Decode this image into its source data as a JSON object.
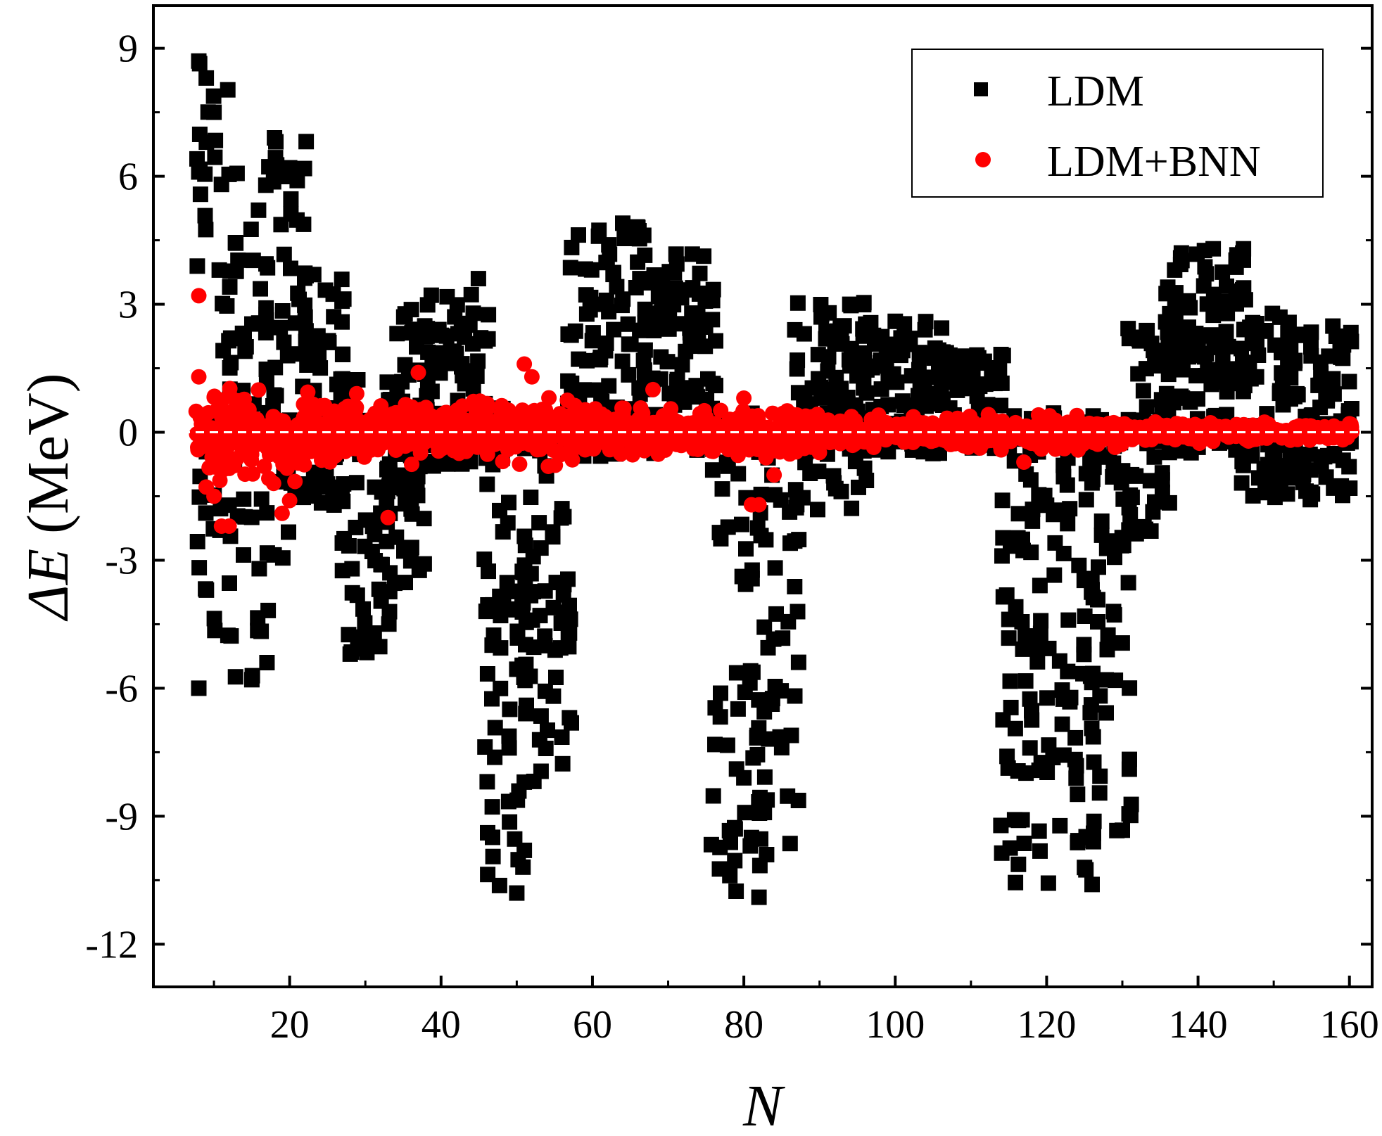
{
  "chart_data": {
    "type": "scatter",
    "title": "",
    "xlabel": "N",
    "ylabel_prefix": "ΔE",
    "ylabel_suffix": " (MeV)",
    "xlim": [
      2,
      163
    ],
    "ylim": [
      -13,
      10
    ],
    "x_ticks": [
      20,
      40,
      60,
      80,
      100,
      120,
      140,
      160
    ],
    "x_tick_labels": [
      "20",
      "40",
      "60",
      "80",
      "100",
      "120",
      "140",
      "160"
    ],
    "x_minor_ticks": [
      10,
      30,
      50,
      70,
      90,
      110,
      130,
      150
    ],
    "y_ticks": [
      9,
      6,
      3,
      0,
      -3,
      -6,
      -9,
      -12
    ],
    "y_tick_labels": [
      "9",
      "6",
      "3",
      "0",
      "-3",
      "-6",
      "-9",
      "-12"
    ],
    "y_minor_ticks": [
      7.5,
      4.5,
      1.5,
      -1.5,
      -4.5,
      -7.5,
      -10.5
    ],
    "reference_line": {
      "y": 0,
      "style": "dashed",
      "color": "#ffffff"
    },
    "grid": false,
    "legend": {
      "position": "top-right"
    },
    "colors": {
      "ldm": "#000000",
      "ldm_bnn": "#ff0000"
    },
    "series": [
      {
        "name": "LDM",
        "marker": "square",
        "envelope": [
          {
            "n_min": 8,
            "n_max": 12,
            "lo": -6.0,
            "hi": 8.7
          },
          {
            "n_min": 12,
            "n_max": 17,
            "lo": -5.8,
            "hi": 6.1
          },
          {
            "n_min": 17,
            "n_max": 22,
            "lo": -3.2,
            "hi": 6.9
          },
          {
            "n_min": 22,
            "n_max": 27,
            "lo": -1.8,
            "hi": 3.8
          },
          {
            "n_min": 27,
            "n_max": 33,
            "lo": -5.2,
            "hi": 1.5
          },
          {
            "n_min": 33,
            "n_max": 38,
            "lo": -3.6,
            "hi": 3.0
          },
          {
            "n_min": 38,
            "n_max": 46,
            "lo": -0.8,
            "hi": 3.7
          },
          {
            "n_min": 46,
            "n_max": 51,
            "lo": -10.8,
            "hi": 0.6
          },
          {
            "n_min": 51,
            "n_max": 57,
            "lo": -8.2,
            "hi": 0.4
          },
          {
            "n_min": 57,
            "n_max": 67,
            "lo": -0.6,
            "hi": 4.9
          },
          {
            "n_min": 67,
            "n_max": 76,
            "lo": -0.5,
            "hi": 4.2
          },
          {
            "n_min": 76,
            "n_max": 82,
            "lo": -10.9,
            "hi": 0.5
          },
          {
            "n_min": 82,
            "n_max": 87,
            "lo": -10.0,
            "hi": 0.3
          },
          {
            "n_min": 87,
            "n_max": 96,
            "lo": -1.9,
            "hi": 3.1
          },
          {
            "n_min": 96,
            "n_max": 106,
            "lo": -0.5,
            "hi": 2.6
          },
          {
            "n_min": 106,
            "n_max": 114,
            "lo": -0.4,
            "hi": 1.9
          },
          {
            "n_min": 114,
            "n_max": 126,
            "lo": -10.6,
            "hi": 0.5
          },
          {
            "n_min": 126,
            "n_max": 131,
            "lo": -9.5,
            "hi": 0.6
          },
          {
            "n_min": 131,
            "n_max": 136,
            "lo": -2.4,
            "hi": 2.6
          },
          {
            "n_min": 136,
            "n_max": 146,
            "lo": -0.5,
            "hi": 4.3
          },
          {
            "n_min": 146,
            "n_max": 152,
            "lo": -1.6,
            "hi": 2.8
          },
          {
            "n_min": 152,
            "n_max": 160,
            "lo": -1.6,
            "hi": 2.5
          }
        ],
        "outliers": [
          [
            8,
            8.7
          ],
          [
            8,
            6.1
          ],
          [
            9,
            6.8
          ],
          [
            10,
            7.5
          ],
          [
            18,
            6.9
          ],
          [
            20,
            6.2
          ],
          [
            21,
            5.9
          ],
          [
            8,
            -6.0
          ],
          [
            9,
            -3.7
          ],
          [
            15,
            -5.8
          ],
          [
            17,
            -5.4
          ],
          [
            28,
            -5.2
          ],
          [
            29,
            -4.8
          ],
          [
            50,
            -10.8
          ],
          [
            51,
            -9.8
          ],
          [
            51,
            -8.2
          ],
          [
            49,
            -7.4
          ],
          [
            82,
            -10.9
          ],
          [
            81,
            -9.5
          ],
          [
            83,
            -9.9
          ],
          [
            80,
            -8.1
          ],
          [
            126,
            -10.6
          ],
          [
            125,
            -10.2
          ],
          [
            126,
            -9.5
          ],
          [
            64,
            4.9
          ],
          [
            66,
            4.8
          ],
          [
            142,
            4.3
          ],
          [
            146,
            4.3
          ],
          [
            94,
            3.0
          ],
          [
            100,
            2.6
          ]
        ]
      },
      {
        "name": "LDM+BNN",
        "marker": "circle",
        "envelope": [
          {
            "n_min": 8,
            "n_max": 22,
            "lo": -1.5,
            "hi": 1.2
          },
          {
            "n_min": 22,
            "n_max": 60,
            "lo": -0.9,
            "hi": 1.0
          },
          {
            "n_min": 60,
            "n_max": 90,
            "lo": -0.7,
            "hi": 0.7
          },
          {
            "n_min": 90,
            "n_max": 130,
            "lo": -0.5,
            "hi": 0.5
          },
          {
            "n_min": 130,
            "n_max": 160,
            "lo": -0.3,
            "hi": 0.3
          }
        ],
        "outliers": [
          [
            8,
            3.2
          ],
          [
            8,
            1.3
          ],
          [
            11,
            -2.2
          ],
          [
            12,
            -2.2
          ],
          [
            10,
            -1.5
          ],
          [
            19,
            -1.9
          ],
          [
            20,
            -1.6
          ],
          [
            33,
            -2.0
          ],
          [
            51,
            1.6
          ],
          [
            52,
            1.3
          ],
          [
            37,
            1.4
          ],
          [
            81,
            -1.7
          ],
          [
            82,
            -1.7
          ],
          [
            84,
            -1.0
          ],
          [
            68,
            1.0
          ],
          [
            80,
            0.8
          ],
          [
            117,
            -0.7
          ],
          [
            160,
            0.2
          ]
        ]
      }
    ]
  }
}
